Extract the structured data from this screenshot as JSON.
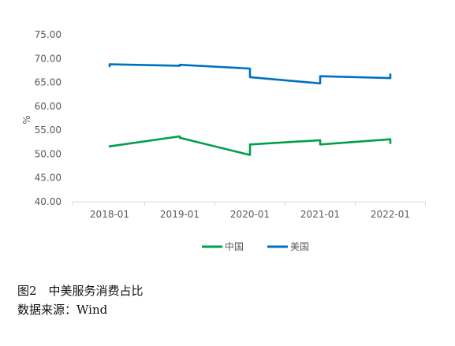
{
  "chart_data": {
    "type": "line",
    "ylabel": "%",
    "ylim": [
      40,
      75
    ],
    "yticks": [
      "40.00",
      "45.00",
      "50.00",
      "55.00",
      "60.00",
      "65.00",
      "70.00",
      "75.00"
    ],
    "xticks": [
      "2018-01",
      "2019-01",
      "2020-01",
      "2021-01",
      "2022-01"
    ],
    "legend_position": "bottom",
    "grid": false,
    "series": [
      {
        "name": "中国",
        "color": "#00A04A",
        "points": [
          {
            "x": "2018-01",
            "y": 51.6
          },
          {
            "x": "2019-01",
            "y": 53.7
          },
          {
            "x": "2019-01",
            "y": 53.4
          },
          {
            "x": "2020-01",
            "y": 49.8
          },
          {
            "x": "2020-01",
            "y": 52.0
          },
          {
            "x": "2021-01",
            "y": 52.9
          },
          {
            "x": "2021-01",
            "y": 52.0
          },
          {
            "x": "2022-01",
            "y": 53.1
          },
          {
            "x": "2022-01",
            "y": 52.3
          }
        ]
      },
      {
        "name": "美国",
        "color": "#0070C0",
        "points": [
          {
            "x": "2018-01",
            "y": 68.4
          },
          {
            "x": "2018-01",
            "y": 68.8
          },
          {
            "x": "2019-01",
            "y": 68.5
          },
          {
            "x": "2019-01",
            "y": 68.7
          },
          {
            "x": "2020-01",
            "y": 67.9
          },
          {
            "x": "2020-01",
            "y": 66.1
          },
          {
            "x": "2021-01",
            "y": 64.8
          },
          {
            "x": "2021-01",
            "y": 66.3
          },
          {
            "x": "2022-01",
            "y": 65.9
          },
          {
            "x": "2022-01",
            "y": 66.7
          }
        ]
      }
    ]
  },
  "caption": {
    "figure": "图2　中美服务消费占比",
    "source": "数据来源：Wind"
  }
}
